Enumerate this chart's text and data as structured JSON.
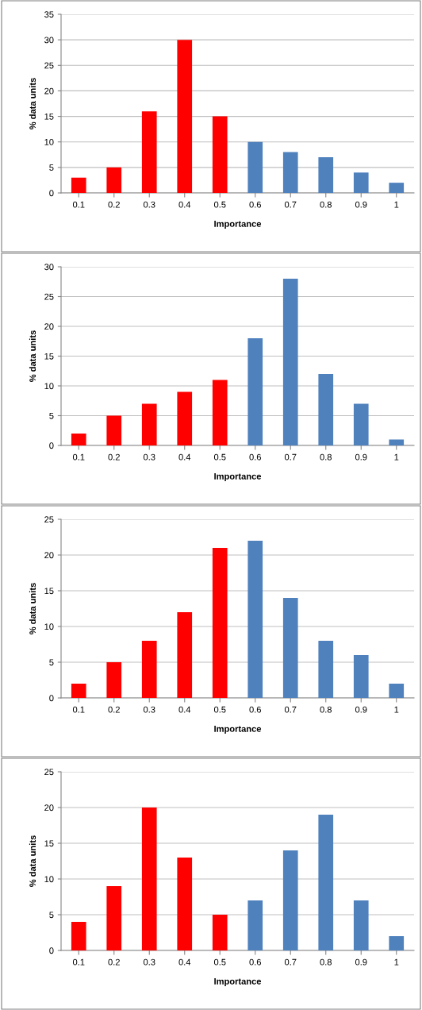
{
  "chart_data": [
    {
      "type": "bar",
      "xlabel": "Importance",
      "ylabel": "% data units",
      "categories": [
        "0.1",
        "0.2",
        "0.3",
        "0.4",
        "0.5",
        "0.6",
        "0.7",
        "0.8",
        "0.9",
        "1"
      ],
      "values": [
        3,
        5,
        16,
        30,
        15,
        10,
        8,
        7,
        4,
        2
      ],
      "colors": [
        "#ff0000",
        "#ff0000",
        "#ff0000",
        "#ff0000",
        "#ff0000",
        "#4f81bd",
        "#4f81bd",
        "#4f81bd",
        "#4f81bd",
        "#4f81bd"
      ],
      "ylim": [
        0,
        35
      ],
      "yticks": [
        0,
        5,
        10,
        15,
        20,
        25,
        30,
        35
      ],
      "grid": "y"
    },
    {
      "type": "bar",
      "xlabel": "Importance",
      "ylabel": "% data units",
      "categories": [
        "0.1",
        "0.2",
        "0.3",
        "0.4",
        "0.5",
        "0.6",
        "0.7",
        "0.8",
        "0.9",
        "1"
      ],
      "values": [
        2,
        5,
        7,
        9,
        11,
        18,
        28,
        12,
        7,
        1
      ],
      "colors": [
        "#ff0000",
        "#ff0000",
        "#ff0000",
        "#ff0000",
        "#ff0000",
        "#4f81bd",
        "#4f81bd",
        "#4f81bd",
        "#4f81bd",
        "#4f81bd"
      ],
      "ylim": [
        0,
        30
      ],
      "yticks": [
        0,
        5,
        10,
        15,
        20,
        25,
        30
      ],
      "grid": "y"
    },
    {
      "type": "bar",
      "xlabel": "Importance",
      "ylabel": "% data units",
      "categories": [
        "0.1",
        "0.2",
        "0.3",
        "0.4",
        "0.5",
        "0.6",
        "0.7",
        "0.8",
        "0.9",
        "1"
      ],
      "values": [
        2,
        5,
        8,
        12,
        21,
        22,
        14,
        8,
        6,
        2
      ],
      "colors": [
        "#ff0000",
        "#ff0000",
        "#ff0000",
        "#ff0000",
        "#ff0000",
        "#4f81bd",
        "#4f81bd",
        "#4f81bd",
        "#4f81bd",
        "#4f81bd"
      ],
      "ylim": [
        0,
        25
      ],
      "yticks": [
        0,
        5,
        10,
        15,
        20,
        25
      ],
      "grid": "y"
    },
    {
      "type": "bar",
      "xlabel": "Importance",
      "ylabel": "% data units",
      "categories": [
        "0.1",
        "0.2",
        "0.3",
        "0.4",
        "0.5",
        "0.6",
        "0.7",
        "0.8",
        "0.9",
        "1"
      ],
      "values": [
        4,
        9,
        20,
        13,
        5,
        7,
        14,
        19,
        7,
        2
      ],
      "colors": [
        "#ff0000",
        "#ff0000",
        "#ff0000",
        "#ff0000",
        "#ff0000",
        "#4f81bd",
        "#4f81bd",
        "#4f81bd",
        "#4f81bd",
        "#4f81bd"
      ],
      "ylim": [
        0,
        25
      ],
      "yticks": [
        0,
        5,
        10,
        15,
        20,
        25
      ],
      "grid": "y"
    }
  ]
}
